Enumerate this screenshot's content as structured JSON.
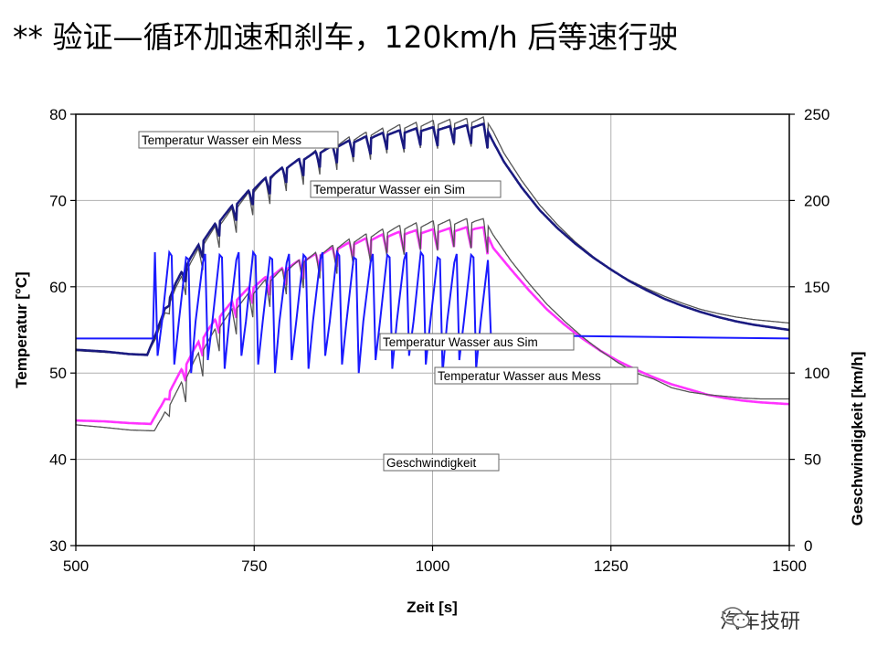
{
  "slide": {
    "title": "** 验证—循环加速和刹车，120km/h 后等速行驶",
    "watermark": "汽车技研",
    "watermark_icon": "wechat-icon"
  },
  "chart_data": {
    "type": "line",
    "xlabel": "Zeit [s]",
    "ylabel": "Temperatur [°C]",
    "y2label": "Geschwindigkeit [km/h]",
    "xlim": [
      500,
      1500
    ],
    "ylim": [
      30,
      80
    ],
    "y2lim": [
      0,
      250
    ],
    "xticks": [
      "500",
      "750",
      "1000",
      "1250",
      "1500"
    ],
    "yticks": [
      "30",
      "40",
      "50",
      "60",
      "70",
      "80"
    ],
    "y2ticks": [
      "0",
      "50",
      "100",
      "150",
      "200",
      "250"
    ],
    "grid": true,
    "series": [
      {
        "name": "Temperatur Wasser ein Mess",
        "color": "#555555",
        "axis": "left",
        "points": [
          [
            500,
            52.6
          ],
          [
            540,
            52.4
          ],
          [
            575,
            52.2
          ],
          [
            600,
            52.2
          ],
          [
            612,
            54
          ],
          [
            625,
            57
          ],
          [
            640,
            60
          ],
          [
            660,
            63
          ],
          [
            680,
            65.5
          ],
          [
            700,
            67.5
          ],
          [
            720,
            69.2
          ],
          [
            740,
            70.8
          ],
          [
            760,
            72.2
          ],
          [
            780,
            73.4
          ],
          [
            800,
            74.4
          ],
          [
            820,
            75.2
          ],
          [
            840,
            76
          ],
          [
            860,
            76.7
          ],
          [
            880,
            77.3
          ],
          [
            900,
            77.8
          ],
          [
            920,
            78.2
          ],
          [
            940,
            78.6
          ],
          [
            960,
            78.9
          ],
          [
            980,
            79.1
          ],
          [
            1000,
            79.3
          ],
          [
            1020,
            79.4
          ],
          [
            1040,
            79.5
          ],
          [
            1060,
            79.6
          ],
          [
            1072,
            79.7
          ],
          [
            1085,
            78
          ],
          [
            1100,
            75.5
          ],
          [
            1125,
            72.3
          ],
          [
            1150,
            69.5
          ],
          [
            1175,
            67.2
          ],
          [
            1200,
            65.2
          ],
          [
            1225,
            63.5
          ],
          [
            1250,
            62
          ],
          [
            1275,
            60.8
          ],
          [
            1300,
            59.8
          ],
          [
            1325,
            58.9
          ],
          [
            1350,
            58.1
          ],
          [
            1375,
            57.4
          ],
          [
            1400,
            56.9
          ],
          [
            1425,
            56.5
          ],
          [
            1450,
            56.2
          ],
          [
            1475,
            56
          ],
          [
            1500,
            55.8
          ]
        ],
        "saw": 3.6
      },
      {
        "name": "Temperatur Wasser ein Sim",
        "color": "#1a1a80",
        "axis": "left",
        "points": [
          [
            500,
            52.7
          ],
          [
            540,
            52.5
          ],
          [
            575,
            52.2
          ],
          [
            600,
            52.1
          ],
          [
            612,
            54.5
          ],
          [
            625,
            57.5
          ],
          [
            640,
            60.5
          ],
          [
            660,
            63.5
          ],
          [
            680,
            65.8
          ],
          [
            700,
            67.8
          ],
          [
            720,
            69.5
          ],
          [
            740,
            71
          ],
          [
            760,
            72.3
          ],
          [
            780,
            73.4
          ],
          [
            800,
            74.3
          ],
          [
            820,
            75.1
          ],
          [
            840,
            75.8
          ],
          [
            860,
            76.4
          ],
          [
            880,
            76.9
          ],
          [
            900,
            77.3
          ],
          [
            920,
            77.7
          ],
          [
            940,
            78
          ],
          [
            960,
            78.2
          ],
          [
            980,
            78.4
          ],
          [
            1000,
            78.5
          ],
          [
            1020,
            78.6
          ],
          [
            1040,
            78.7
          ],
          [
            1060,
            78.8
          ],
          [
            1072,
            78.9
          ],
          [
            1085,
            76.8
          ],
          [
            1100,
            74.5
          ],
          [
            1125,
            71.5
          ],
          [
            1150,
            68.9
          ],
          [
            1175,
            66.8
          ],
          [
            1200,
            65
          ],
          [
            1225,
            63.4
          ],
          [
            1250,
            62
          ],
          [
            1275,
            60.7
          ],
          [
            1300,
            59.6
          ],
          [
            1325,
            58.6
          ],
          [
            1350,
            57.8
          ],
          [
            1375,
            57.1
          ],
          [
            1400,
            56.5
          ],
          [
            1425,
            56
          ],
          [
            1450,
            55.6
          ],
          [
            1475,
            55.3
          ],
          [
            1500,
            55
          ]
        ],
        "saw": 2.4
      },
      {
        "name": "Temperatur Wasser aus Sim",
        "color": "#ff33ff",
        "axis": "left",
        "points": [
          [
            500,
            44.5
          ],
          [
            540,
            44.4
          ],
          [
            575,
            44.2
          ],
          [
            605,
            44.1
          ],
          [
            625,
            47
          ],
          [
            645,
            50
          ],
          [
            665,
            52.8
          ],
          [
            685,
            55.2
          ],
          [
            705,
            57.2
          ],
          [
            725,
            58.8
          ],
          [
            745,
            60.1
          ],
          [
            765,
            61.1
          ],
          [
            785,
            62
          ],
          [
            805,
            62.8
          ],
          [
            825,
            63.5
          ],
          [
            845,
            64.1
          ],
          [
            865,
            64.7
          ],
          [
            885,
            65.2
          ],
          [
            905,
            65.6
          ],
          [
            925,
            66
          ],
          [
            945,
            66.3
          ],
          [
            965,
            66.5
          ],
          [
            985,
            66.6
          ],
          [
            1005,
            66.7
          ],
          [
            1025,
            66.8
          ],
          [
            1045,
            66.9
          ],
          [
            1060,
            67
          ],
          [
            1072,
            66.9
          ],
          [
            1085,
            64.5
          ],
          [
            1110,
            62
          ],
          [
            1135,
            59.6
          ],
          [
            1160,
            57.4
          ],
          [
            1185,
            55.6
          ],
          [
            1210,
            54
          ],
          [
            1235,
            52.6
          ],
          [
            1260,
            51.4
          ],
          [
            1285,
            50.4
          ],
          [
            1310,
            49.5
          ],
          [
            1335,
            48.7
          ],
          [
            1360,
            48.1
          ],
          [
            1385,
            47.5
          ],
          [
            1410,
            47.1
          ],
          [
            1435,
            46.8
          ],
          [
            1460,
            46.6
          ],
          [
            1480,
            46.5
          ],
          [
            1500,
            46.4
          ]
        ],
        "saw": 2.6
      },
      {
        "name": "Temperatur Wasser aus Mess",
        "color": "#555555",
        "axis": "left",
        "points": [
          [
            500,
            44
          ],
          [
            540,
            43.7
          ],
          [
            575,
            43.4
          ],
          [
            610,
            43.3
          ],
          [
            625,
            45.5
          ],
          [
            645,
            48.5
          ],
          [
            665,
            51.5
          ],
          [
            685,
            54
          ],
          [
            705,
            56.2
          ],
          [
            725,
            58
          ],
          [
            745,
            59.5
          ],
          [
            765,
            60.8
          ],
          [
            785,
            61.9
          ],
          [
            805,
            62.8
          ],
          [
            825,
            63.6
          ],
          [
            845,
            64.3
          ],
          [
            865,
            65
          ],
          [
            885,
            65.6
          ],
          [
            905,
            66.1
          ],
          [
            925,
            66.6
          ],
          [
            945,
            67
          ],
          [
            965,
            67.3
          ],
          [
            985,
            67.5
          ],
          [
            1005,
            67.7
          ],
          [
            1025,
            67.8
          ],
          [
            1045,
            67.9
          ],
          [
            1060,
            68
          ],
          [
            1072,
            67.9
          ],
          [
            1085,
            66
          ],
          [
            1110,
            63
          ],
          [
            1135,
            60.4
          ],
          [
            1160,
            58
          ],
          [
            1185,
            56
          ],
          [
            1210,
            54.2
          ],
          [
            1235,
            52.6
          ],
          [
            1260,
            51.2
          ],
          [
            1285,
            50
          ],
          [
            1310,
            49.3
          ],
          [
            1335,
            48.3
          ],
          [
            1360,
            47.8
          ],
          [
            1385,
            47.5
          ],
          [
            1410,
            47.3
          ],
          [
            1435,
            47.1
          ],
          [
            1460,
            47
          ],
          [
            1480,
            47
          ],
          [
            1500,
            47
          ]
        ],
        "saw": 3.8
      },
      {
        "name": "Geschwindigkeit",
        "color": "#1a1aff",
        "axis": "right",
        "base": 120,
        "peak": 170,
        "trough": 110,
        "cycle_start": 608,
        "cycle_end": 1078,
        "cycles": 20
      }
    ],
    "annotations": [
      {
        "text": "Temperatur Wasser ein Mess",
        "series": 0
      },
      {
        "text": "Temperatur Wasser ein Sim",
        "series": 1
      },
      {
        "text": "Temperatur Wasser aus Sim",
        "series": 2
      },
      {
        "text": "Temperatur Wasser aus Mess",
        "series": 3
      },
      {
        "text": "Geschwindigkeit",
        "series": 4
      }
    ]
  }
}
